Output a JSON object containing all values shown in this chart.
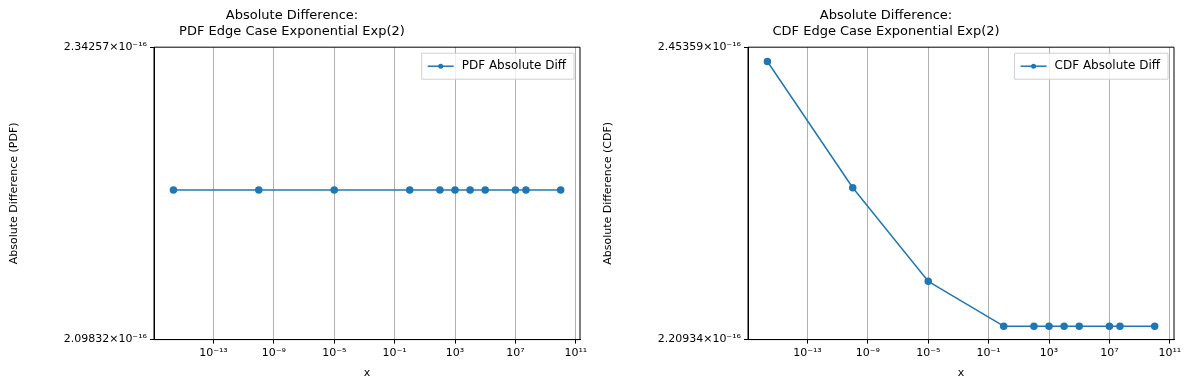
{
  "chart_data": [
    {
      "type": "line",
      "title": "Absolute Difference:\nPDF Edge Case Exponential Exp(2)",
      "xlabel": "x",
      "ylabel": "Absolute Difference (PDF)",
      "x": [
        2.22e-16,
        1e-10,
        1e-05,
        1,
        100,
        1000,
        10000,
        100000,
        10000000.0,
        50000000.0,
        10000000000.0
      ],
      "series": [
        {
          "name": "PDF Absolute Diff",
          "color": "#1f77b4",
          "values": [
            2.22e-16,
            2.22e-16,
            2.22e-16,
            2.22e-16,
            2.22e-16,
            2.22e-16,
            2.22e-16,
            2.22e-16,
            2.22e-16,
            2.22e-16,
            2.22e-16
          ]
        }
      ],
      "xlim": [
        1.15e-17,
        190000000000.0
      ],
      "xticks": [
        {
          "value": 1e-13,
          "label": "10⁻¹³"
        },
        {
          "value": 1e-09,
          "label": "10⁻⁹"
        },
        {
          "value": 1e-05,
          "label": "10⁻⁵"
        },
        {
          "value": 0.1,
          "label": "10⁻¹"
        },
        {
          "value": 1000,
          "label": "10³"
        },
        {
          "value": 10000000.0,
          "label": "10⁷"
        },
        {
          "value": 100000000000.0,
          "label": "10¹¹"
        }
      ],
      "ylim": [
        2.09832e-16,
        2.34257e-16
      ],
      "yticks": [
        {
          "value": 2.09832e-16,
          "label": "2.09832×10⁻¹⁶"
        },
        {
          "value": 2.34257e-16,
          "label": "2.34257×10⁻¹⁶"
        }
      ],
      "log": "xy",
      "grid": "x",
      "legend": "top right",
      "marker": "circle"
    },
    {
      "type": "line",
      "title": "Absolute Difference:\nCDF Edge Case Exponential Exp(2)",
      "xlabel": "x",
      "ylabel": "Absolute Difference (CDF)",
      "x": [
        2.22e-16,
        1e-10,
        1e-05,
        1,
        100,
        1000,
        10000,
        100000,
        10000000.0,
        50000000.0,
        10000000000.0
      ],
      "series": [
        {
          "name": "CDF Absolute Diff",
          "color": "#1f77b4",
          "values": [
            2.441e-16,
            2.333e-16,
            2.256e-16,
            2.22e-16,
            2.22e-16,
            2.22e-16,
            2.22e-16,
            2.22e-16,
            2.22e-16,
            2.22e-16,
            2.22e-16
          ]
        }
      ],
      "xlim": [
        1.15e-17,
        190000000000.0
      ],
      "xticks": [
        {
          "value": 1e-13,
          "label": "10⁻¹³"
        },
        {
          "value": 1e-09,
          "label": "10⁻⁹"
        },
        {
          "value": 1e-05,
          "label": "10⁻⁵"
        },
        {
          "value": 0.1,
          "label": "10⁻¹"
        },
        {
          "value": 1000,
          "label": "10³"
        },
        {
          "value": 10000000.0,
          "label": "10⁷"
        },
        {
          "value": 100000000000.0,
          "label": "10¹¹"
        }
      ],
      "ylim": [
        2.20934e-16,
        2.45359e-16
      ],
      "yticks": [
        {
          "value": 2.20934e-16,
          "label": "2.20934×10⁻¹⁶"
        },
        {
          "value": 2.45359e-16,
          "label": "2.45359×10⁻¹⁶"
        }
      ],
      "log": "xy",
      "grid": "x",
      "legend": "top right",
      "marker": "circle"
    }
  ]
}
